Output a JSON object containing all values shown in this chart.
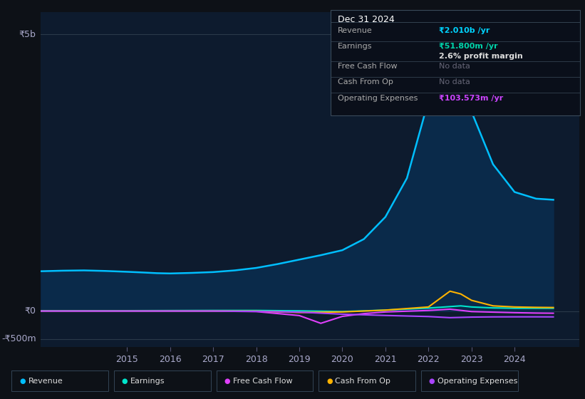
{
  "background_color": "#0d1117",
  "plot_bg_color": "#0d1b2e",
  "title_box": {
    "date": "Dec 31 2024",
    "revenue_label": "Revenue",
    "revenue_val": "₹2.010b /yr",
    "earnings_label": "Earnings",
    "earnings_val": "₹51.800m /yr",
    "profit_margin": "2.6% profit margin",
    "fcf_label": "Free Cash Flow",
    "fcf_val": "No data",
    "cfo_label": "Cash From Op",
    "cfo_val": "No data",
    "opex_label": "Operating Expenses",
    "opex_val": "₹103.573m /yr"
  },
  "ylabel_top": "₹5b",
  "ylabel_mid": "₹0",
  "ylabel_bot": "-₹500m",
  "ylim": [
    -650,
    5400
  ],
  "xlim": [
    2013.0,
    2025.5
  ],
  "xticks": [
    2015,
    2016,
    2017,
    2018,
    2019,
    2020,
    2021,
    2022,
    2023,
    2024
  ],
  "hlines": [
    5000,
    0,
    -500
  ],
  "revenue": {
    "color": "#00bfff",
    "fill_color": "#0a2a4a",
    "label": "Revenue",
    "x": [
      2013.0,
      2013.5,
      2014.0,
      2014.5,
      2015.0,
      2015.3,
      2015.7,
      2016.0,
      2016.5,
      2017.0,
      2017.5,
      2018.0,
      2018.5,
      2019.0,
      2019.5,
      2020.0,
      2020.5,
      2021.0,
      2021.5,
      2022.0,
      2022.25,
      2022.5,
      2022.75,
      2023.0,
      2023.5,
      2024.0,
      2024.5,
      2024.9
    ],
    "y": [
      720,
      730,
      735,
      725,
      710,
      700,
      685,
      680,
      690,
      705,
      735,
      780,
      850,
      930,
      1010,
      1100,
      1300,
      1700,
      2400,
      3800,
      4900,
      5050,
      4800,
      3600,
      2650,
      2150,
      2030,
      2010
    ]
  },
  "earnings": {
    "color": "#00e5cc",
    "label": "Earnings",
    "x": [
      2013.0,
      2014.0,
      2015.0,
      2016.0,
      2017.0,
      2018.0,
      2019.0,
      2020.0,
      2021.0,
      2022.0,
      2022.75,
      2023.0,
      2023.5,
      2024.0,
      2024.5,
      2024.9
    ],
    "y": [
      8,
      8,
      8,
      10,
      12,
      12,
      5,
      -8,
      18,
      55,
      95,
      75,
      58,
      52,
      52,
      52
    ]
  },
  "free_cash_flow": {
    "color": "#e040fb",
    "label": "Free Cash Flow",
    "x": [
      2013.0,
      2014.0,
      2015.0,
      2016.0,
      2017.0,
      2018.0,
      2019.0,
      2019.5,
      2020.0,
      2020.5,
      2021.0,
      2022.0,
      2022.5,
      2023.0,
      2023.5,
      2024.0,
      2024.5,
      2024.9
    ],
    "y": [
      0,
      0,
      0,
      0,
      0,
      -8,
      -80,
      -220,
      -95,
      -45,
      -15,
      12,
      35,
      -8,
      -18,
      -28,
      -35,
      -38
    ]
  },
  "cash_from_op": {
    "color": "#ffb300",
    "label": "Cash From Op",
    "x": [
      2013.0,
      2014.0,
      2015.0,
      2016.0,
      2017.0,
      2018.0,
      2019.0,
      2020.0,
      2021.0,
      2022.0,
      2022.5,
      2022.75,
      2023.0,
      2023.5,
      2024.0,
      2024.5,
      2024.9
    ],
    "y": [
      0,
      0,
      0,
      0,
      0,
      0,
      -25,
      -15,
      18,
      75,
      360,
      310,
      195,
      95,
      75,
      68,
      65
    ]
  },
  "operating_expenses": {
    "color": "#aa44ff",
    "label": "Operating Expenses",
    "x": [
      2013.0,
      2014.0,
      2015.0,
      2016.0,
      2017.0,
      2018.0,
      2019.0,
      2020.0,
      2021.0,
      2022.0,
      2022.5,
      2023.0,
      2023.5,
      2024.0,
      2024.5,
      2024.9
    ],
    "y": [
      0,
      0,
      0,
      0,
      0,
      -5,
      -18,
      -55,
      -78,
      -98,
      -118,
      -108,
      -104,
      -103,
      -103,
      -104
    ]
  },
  "legend_items": [
    {
      "label": "Revenue",
      "color": "#00bfff"
    },
    {
      "label": "Earnings",
      "color": "#00e5cc"
    },
    {
      "label": "Free Cash Flow",
      "color": "#e040fb"
    },
    {
      "label": "Cash From Op",
      "color": "#ffb300"
    },
    {
      "label": "Operating Expenses",
      "color": "#aa44ff"
    }
  ]
}
